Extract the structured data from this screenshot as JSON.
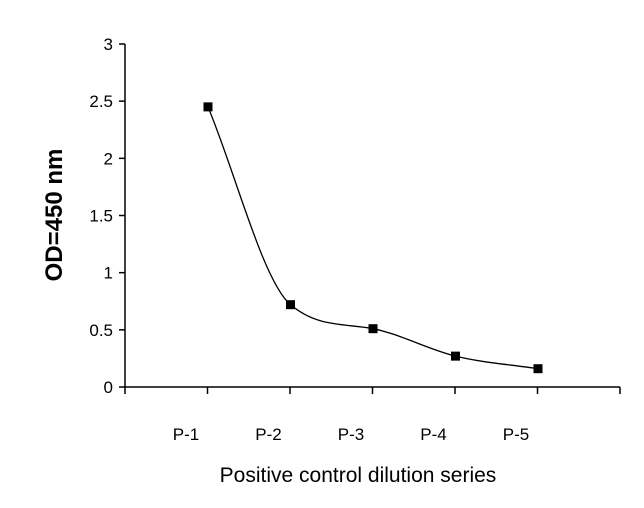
{
  "chart_data": {
    "type": "line",
    "categories": [
      "P-1",
      "P-2",
      "P-3",
      "P-4",
      "P-5"
    ],
    "series": [
      {
        "values": [
          2.45,
          0.72,
          0.51,
          0.27,
          0.16
        ]
      }
    ],
    "xlabel": "Positive control dilution series",
    "ylabel": "OD=450 nm",
    "ylim": [
      0,
      3
    ],
    "yticks": [
      "0",
      "0.5",
      "1",
      "1.5",
      "2",
      "2.5",
      "3"
    ],
    "grid": false,
    "legend": "none",
    "line_style": "smooth",
    "marker": "square",
    "colors": {
      "line": "#000000",
      "marker": "#000000",
      "axis": "#000000"
    }
  }
}
